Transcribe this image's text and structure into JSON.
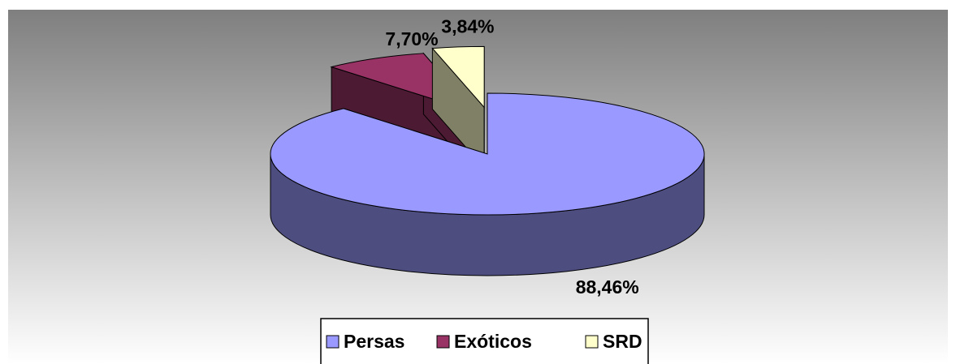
{
  "chart_data": {
    "type": "pie3d",
    "categories": [
      "Persas",
      "Exóticos",
      "SRD"
    ],
    "values": [
      88.46,
      7.7,
      3.84
    ],
    "value_labels": [
      "88,46%",
      "7,70%",
      "3,84%"
    ],
    "colors": [
      "#9999ff",
      "#993366",
      "#ffffcc"
    ],
    "exploded": [
      false,
      true,
      true
    ],
    "legend": "bottom"
  }
}
